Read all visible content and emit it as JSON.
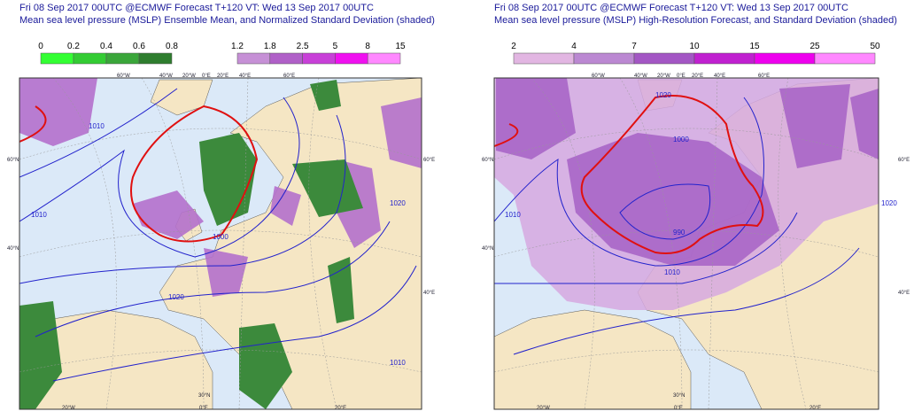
{
  "panels": [
    {
      "title_lines": [
        "Fri 08 Sep 2017 00UTC @ECMWF Forecast T+120 VT: Wed 13 Sep 2017 00UTC",
        "Mean sea level pressure (MSLP) Ensemble Mean, and Normalized Standard Deviation (shaded)"
      ],
      "colorbars": [
        {
          "labels": [
            0,
            0.2,
            0.4,
            0.6,
            0.8
          ],
          "colors": [
            "#33ff33",
            "#33cc33",
            "#3aa63a",
            "#2e7d2e"
          ]
        },
        {
          "labels": [
            1.2,
            1.8,
            2.5,
            5,
            8,
            15
          ],
          "colors": [
            "#c690d6",
            "#b060c8",
            "#c840d8",
            "#f010f0",
            "#ff88ff"
          ]
        }
      ],
      "map_labels": [
        "60°W",
        "40°W",
        "20°W",
        "0°E",
        "20°E",
        "40°E",
        "60°E",
        "60°N",
        "40°N",
        "60°E",
        "40°E",
        "20°W",
        "0°E",
        "20°E",
        "30°N",
        "1010",
        "1020",
        "1000",
        "1010",
        "1020",
        "1010"
      ]
    },
    {
      "title_lines": [
        "Fri 08 Sep 2017 00UTC @ECMWF Forecast T+120 VT: Wed 13 Sep 2017 00UTC",
        "Mean sea level pressure (MSLP) High-Resolution Forecast, and Standard Deviation (shaded)"
      ],
      "colorbars": [
        {
          "labels": [
            2,
            4,
            7,
            10,
            15,
            25,
            50
          ],
          "colors": [
            "#e2b6e2",
            "#bb88d2",
            "#a356c4",
            "#c020d0",
            "#ee00ee",
            "#ff88ff"
          ]
        }
      ],
      "map_labels": [
        "60°W",
        "40°W",
        "20°W",
        "0°E",
        "20°E",
        "40°E",
        "60°E",
        "60°N",
        "40°N",
        "60°E",
        "40°E",
        "20°W",
        "0°E",
        "20°E",
        "30°N",
        "1010",
        "1020",
        "1000",
        "990",
        "1010",
        "1020"
      ]
    }
  ]
}
